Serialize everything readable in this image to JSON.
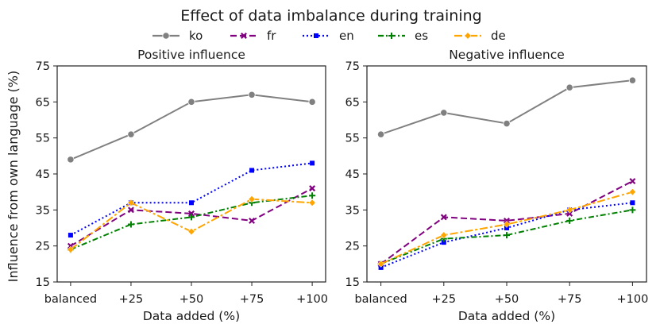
{
  "figure_title": "Effect of data imbalance during training",
  "shared_ylabel": "Influence from own language (%)",
  "legend": [
    {
      "label": "ko",
      "color": "#808080",
      "marker": "circle",
      "dash": "solid"
    },
    {
      "label": "fr",
      "color": "#800080",
      "marker": "x",
      "dash": "dashed"
    },
    {
      "label": "en",
      "color": "#0000ff",
      "marker": "square",
      "dash": "dotted"
    },
    {
      "label": "es",
      "color": "#008000",
      "marker": "plus",
      "dash": "dashdot"
    },
    {
      "label": "de",
      "color": "#ffa500",
      "marker": "diamond",
      "dash": "dashdot-long"
    }
  ],
  "chart_data": [
    {
      "type": "line",
      "title": "Positive influence",
      "xlabel": "Data added (%)",
      "ylabel": "Influence from own language (%)",
      "categories": [
        "balanced",
        "+25",
        "+50",
        "+75",
        "+100"
      ],
      "ylim": [
        15,
        75
      ],
      "yticks": [
        15,
        25,
        35,
        45,
        55,
        65,
        75
      ],
      "series": [
        {
          "name": "ko",
          "values": [
            49,
            56,
            65,
            67,
            65
          ]
        },
        {
          "name": "fr",
          "values": [
            25,
            35,
            34,
            32,
            41
          ]
        },
        {
          "name": "en",
          "values": [
            28,
            37,
            37,
            46,
            48
          ]
        },
        {
          "name": "es",
          "values": [
            24,
            31,
            33,
            37,
            39
          ]
        },
        {
          "name": "de",
          "values": [
            24,
            37,
            29,
            38,
            37
          ]
        }
      ]
    },
    {
      "type": "line",
      "title": "Negative influence",
      "xlabel": "Data added (%)",
      "ylabel": "",
      "categories": [
        "balanced",
        "+25",
        "+50",
        "+75",
        "+100"
      ],
      "ylim": [
        15,
        75
      ],
      "yticks": [
        15,
        25,
        35,
        45,
        55,
        65,
        75
      ],
      "series": [
        {
          "name": "ko",
          "values": [
            56,
            62,
            59,
            69,
            71
          ]
        },
        {
          "name": "fr",
          "values": [
            20,
            33,
            32,
            34,
            43
          ]
        },
        {
          "name": "en",
          "values": [
            19,
            26,
            30,
            35,
            37
          ]
        },
        {
          "name": "es",
          "values": [
            20,
            27,
            28,
            32,
            35
          ]
        },
        {
          "name": "de",
          "values": [
            20,
            28,
            31,
            35,
            40
          ]
        }
      ]
    }
  ]
}
